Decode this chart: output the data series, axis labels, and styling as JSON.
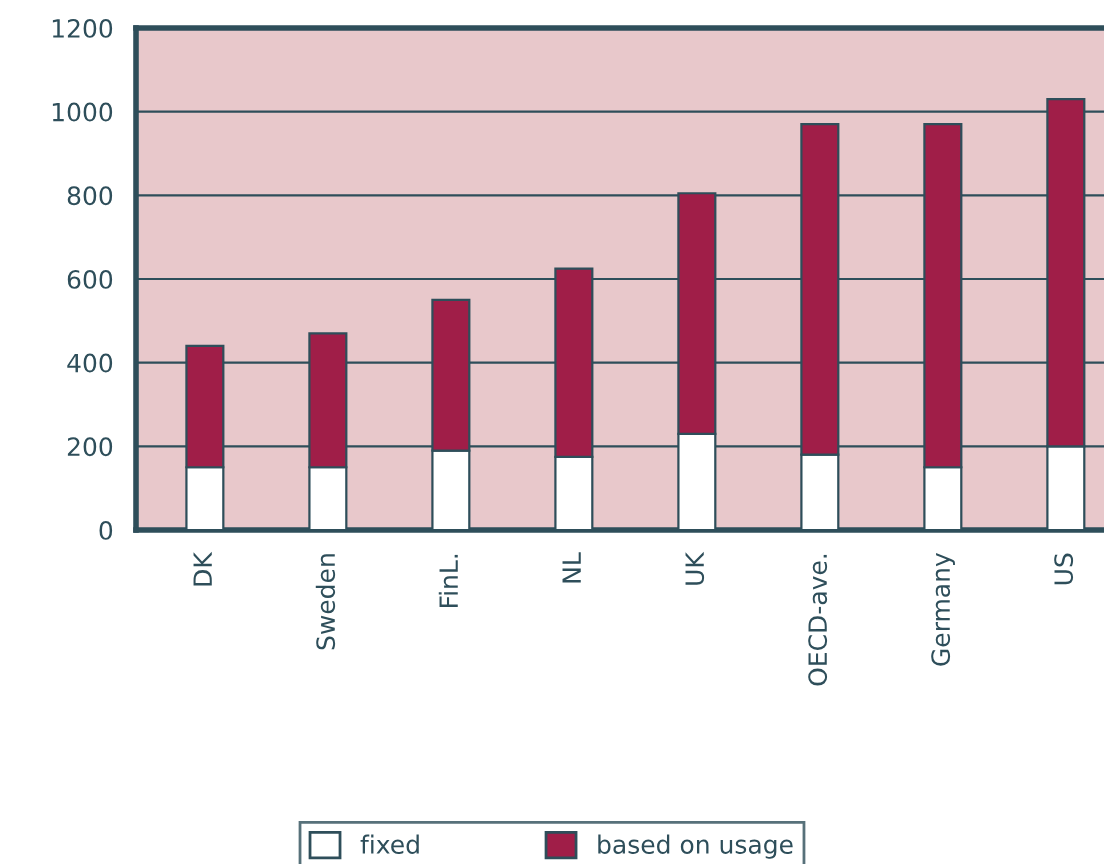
{
  "chart_data": {
    "type": "bar",
    "stacked": true,
    "categories": [
      "DK",
      "Sweden",
      "FinL.",
      "NL",
      "UK",
      "OECD-ave.",
      "Germany",
      "US"
    ],
    "series": [
      {
        "name": "fixed",
        "color": "#ffffff",
        "values": [
          150,
          150,
          190,
          175,
          230,
          180,
          150,
          200
        ]
      },
      {
        "name": "based on usage",
        "color": "#a01e48",
        "values": [
          290,
          320,
          360,
          450,
          575,
          790,
          820,
          830
        ]
      }
    ],
    "ylim": [
      0,
      1200
    ],
    "yticks": [
      0,
      200,
      400,
      600,
      800,
      1000,
      1200
    ],
    "grid": "y",
    "legend": "bottom"
  }
}
